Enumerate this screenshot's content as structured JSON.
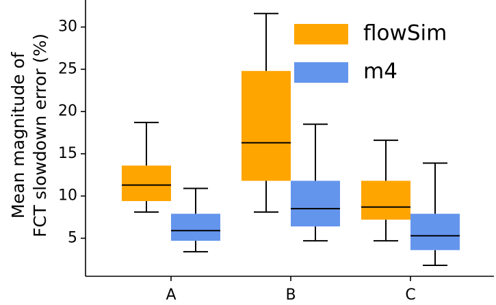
{
  "chart_data": {
    "type": "box",
    "ylabel_lines": [
      "Mean magnitude of",
      "FCT slowdown error (%)"
    ],
    "xlabel": "",
    "categories": [
      "A",
      "B",
      "C"
    ],
    "yticks": [
      5,
      10,
      15,
      20,
      25,
      30
    ],
    "ylim": [
      0.5,
      33.2
    ],
    "grid": false,
    "legend_position": "top-right",
    "series": [
      {
        "name": "flowSim",
        "color": "#FFA500",
        "boxes": [
          {
            "category": "A",
            "whisker_low": 8.1,
            "q1": 9.4,
            "median": 11.3,
            "q3": 13.6,
            "whisker_high": 18.7
          },
          {
            "category": "B",
            "whisker_low": 8.1,
            "q1": 11.8,
            "median": 16.3,
            "q3": 24.8,
            "whisker_high": 31.6
          },
          {
            "category": "C",
            "whisker_low": 4.7,
            "q1": 7.2,
            "median": 8.7,
            "q3": 11.8,
            "whisker_high": 16.6
          }
        ]
      },
      {
        "name": "m4",
        "color": "#6495ED",
        "boxes": [
          {
            "category": "A",
            "whisker_low": 3.4,
            "q1": 4.7,
            "median": 5.9,
            "q3": 7.9,
            "whisker_high": 10.9
          },
          {
            "category": "B",
            "whisker_low": 4.7,
            "q1": 6.4,
            "median": 8.5,
            "q3": 11.8,
            "whisker_high": 18.5
          },
          {
            "category": "C",
            "whisker_low": 1.8,
            "q1": 3.6,
            "median": 5.3,
            "q3": 7.9,
            "whisker_high": 13.9
          }
        ]
      }
    ]
  }
}
